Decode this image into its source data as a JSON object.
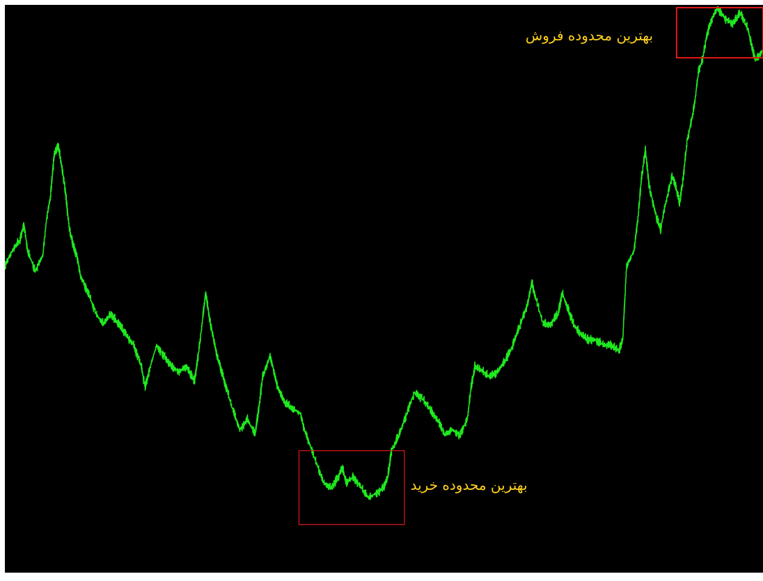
{
  "colors": {
    "background": "#000000",
    "frame": "#ffffff",
    "price_line": "#1fe81f",
    "highlight_box": "#e01818",
    "label_text": "#ffd21e"
  },
  "chart_data": {
    "type": "line",
    "title": "",
    "xlabel": "",
    "ylabel": "",
    "grid": false,
    "legend": "none",
    "xlim": [
      0,
      100
    ],
    "ylim": [
      0,
      100
    ],
    "series": [
      {
        "values": [
          [
            0,
            51
          ],
          [
            1,
            54
          ],
          [
            2,
            56
          ],
          [
            2.5,
            59
          ],
          [
            3,
            54
          ],
          [
            4,
            50
          ],
          [
            5,
            53
          ],
          [
            5.5,
            60
          ],
          [
            6,
            64
          ],
          [
            6.5,
            72
          ],
          [
            7,
            74
          ],
          [
            7.5,
            70
          ],
          [
            8,
            65
          ],
          [
            8.5,
            58
          ],
          [
            9,
            55
          ],
          [
            9.5,
            53
          ],
          [
            10,
            49
          ],
          [
            11,
            46
          ],
          [
            12,
            42
          ],
          [
            13,
            40
          ],
          [
            14,
            42
          ],
          [
            15,
            40
          ],
          [
            16,
            38
          ],
          [
            17,
            36
          ],
          [
            18,
            32
          ],
          [
            18.5,
            28
          ],
          [
            19,
            31
          ],
          [
            20,
            36
          ],
          [
            21,
            34
          ],
          [
            22,
            32
          ],
          [
            23,
            31
          ],
          [
            24,
            32
          ],
          [
            25,
            29
          ],
          [
            25.5,
            34
          ],
          [
            26,
            40
          ],
          [
            26.5,
            46
          ],
          [
            27,
            41
          ],
          [
            28,
            34
          ],
          [
            29,
            29
          ],
          [
            30,
            24
          ],
          [
            31,
            20
          ],
          [
            32,
            22
          ],
          [
            33,
            19
          ],
          [
            33.5,
            24
          ],
          [
            34,
            30
          ],
          [
            35,
            34
          ],
          [
            36,
            28
          ],
          [
            37,
            25
          ],
          [
            38,
            24
          ],
          [
            39,
            23
          ],
          [
            39.5,
            20
          ],
          [
            40,
            18
          ],
          [
            41,
            14
          ],
          [
            42,
            10
          ],
          [
            43,
            9
          ],
          [
            44,
            11
          ],
          [
            44.5,
            13
          ],
          [
            45,
            10
          ],
          [
            46,
            11
          ],
          [
            47,
            9
          ],
          [
            48,
            7
          ],
          [
            49,
            8
          ],
          [
            50,
            9
          ],
          [
            50.5,
            11
          ],
          [
            51,
            16
          ],
          [
            52,
            19
          ],
          [
            53,
            23
          ],
          [
            54,
            27
          ],
          [
            55,
            26
          ],
          [
            56,
            24
          ],
          [
            57,
            22
          ],
          [
            58,
            19
          ],
          [
            59,
            20
          ],
          [
            60,
            19
          ],
          [
            61,
            22
          ],
          [
            61.5,
            28
          ],
          [
            62,
            32
          ],
          [
            63,
            31
          ],
          [
            64,
            30
          ],
          [
            65,
            31
          ],
          [
            66,
            33
          ],
          [
            67,
            36
          ],
          [
            68,
            40
          ],
          [
            69,
            44
          ],
          [
            69.5,
            48
          ],
          [
            70,
            45
          ],
          [
            71,
            40
          ],
          [
            72,
            40
          ],
          [
            73,
            42
          ],
          [
            73.5,
            46
          ],
          [
            74,
            44
          ],
          [
            75,
            40
          ],
          [
            76,
            38
          ],
          [
            77,
            37
          ],
          [
            78,
            37
          ],
          [
            79,
            36
          ],
          [
            80,
            36
          ],
          [
            81,
            35
          ],
          [
            81.5,
            37
          ],
          [
            82,
            51
          ],
          [
            83,
            54
          ],
          [
            83.5,
            60
          ],
          [
            84,
            68
          ],
          [
            84.5,
            73
          ],
          [
            85,
            66
          ],
          [
            86,
            60
          ],
          [
            86.5,
            58
          ],
          [
            87,
            62
          ],
          [
            88,
            68
          ],
          [
            88.5,
            66
          ],
          [
            89,
            63
          ],
          [
            89.5,
            68
          ],
          [
            90,
            75
          ],
          [
            90.5,
            78
          ],
          [
            91,
            82
          ],
          [
            91.5,
            88
          ],
          [
            92,
            90
          ],
          [
            92.5,
            94
          ],
          [
            93,
            97
          ],
          [
            94,
            100
          ],
          [
            95,
            98
          ],
          [
            96,
            97
          ],
          [
            97,
            99
          ],
          [
            98,
            96
          ],
          [
            98.5,
            93
          ],
          [
            99,
            90
          ],
          [
            100,
            92
          ]
        ]
      }
    ],
    "annotations": [
      {
        "text": "بهترین محدوده فروش",
        "box": {
          "x": [
            88.6,
            100
          ],
          "y": [
            90.5,
            100
          ]
        },
        "label_anchor": {
          "x": 85.5,
          "y": 94.7
        }
      },
      {
        "text": "بهترین محدوده خرید",
        "box": {
          "x": [
            38.8,
            52.7
          ],
          "y": [
            2,
            16
          ]
        },
        "label_anchor": {
          "x": 53.5,
          "y": 9.5
        }
      }
    ]
  }
}
